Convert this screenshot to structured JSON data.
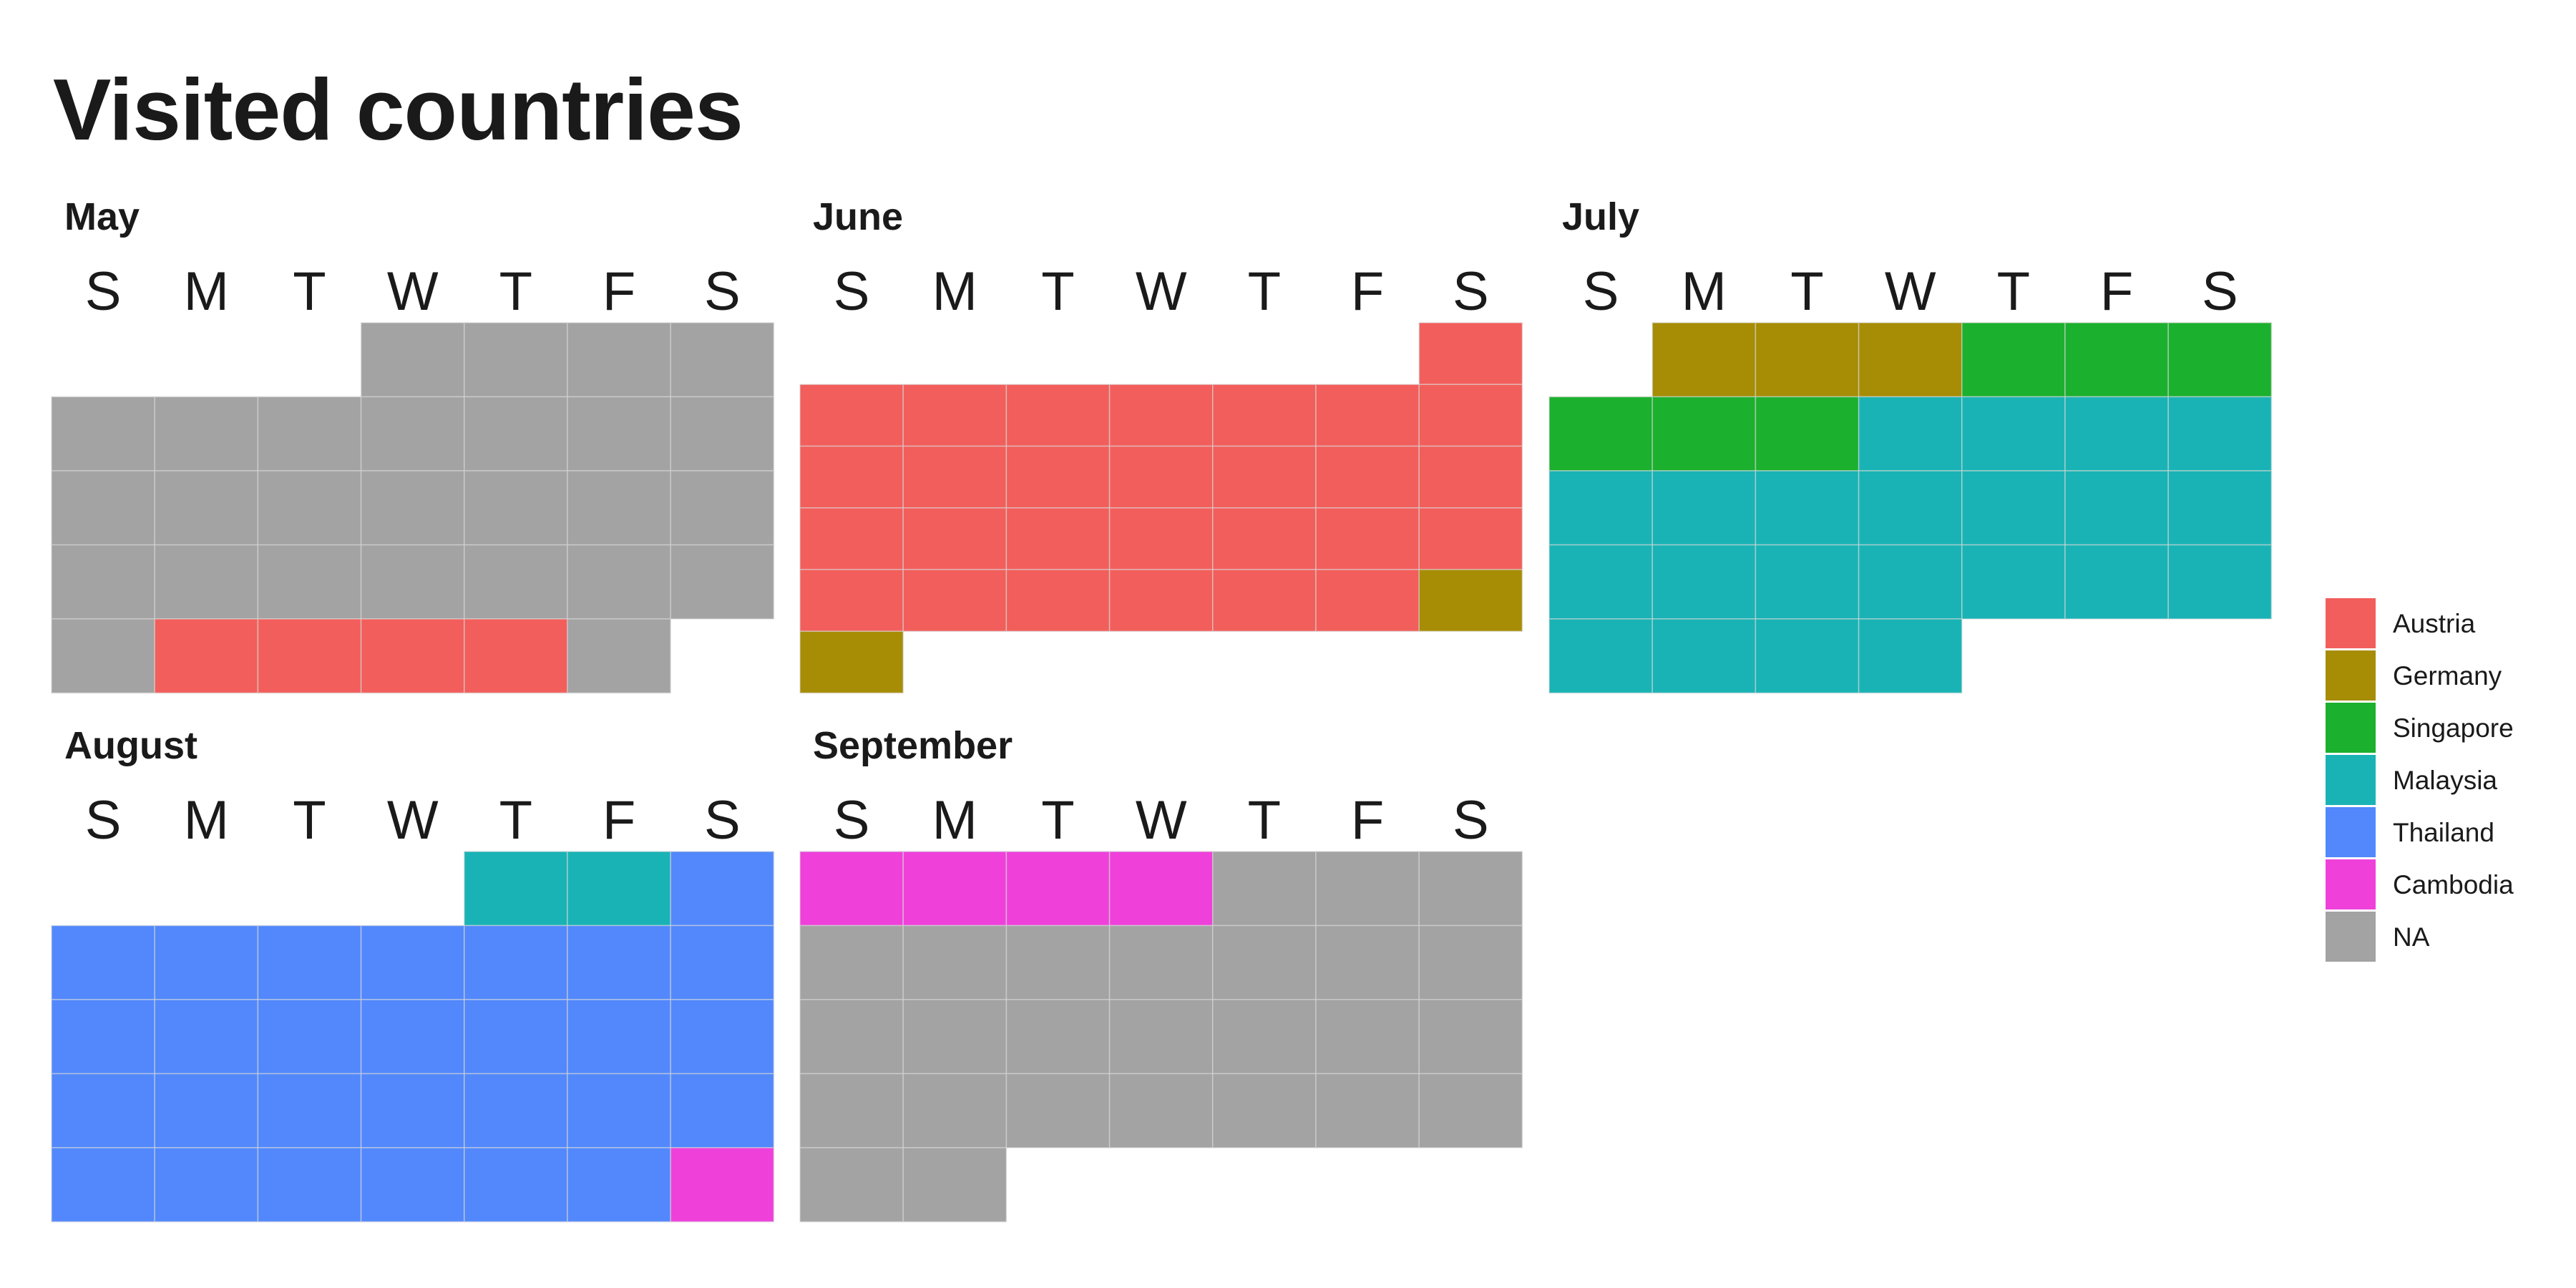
{
  "title": "Visited countries",
  "chart_data": {
    "type": "heatmap",
    "subtype": "calendar",
    "title": "Visited countries",
    "weekday_labels": [
      "S",
      "M",
      "T",
      "W",
      "T",
      "F",
      "S"
    ],
    "legend_title": "",
    "legend_placement": "right",
    "grid": false,
    "categories": [
      "Austria",
      "Germany",
      "Singapore",
      "Malaysia",
      "Thailand",
      "Cambodia",
      "NA"
    ],
    "colors": {
      "Austria": "#F25E5B",
      "Germany": "#A68D05",
      "Singapore": "#1BB02E",
      "Malaysia": "#19B3B5",
      "Thailand": "#5288FC",
      "Cambodia": "#EF41DA",
      "NA": "#A3A3A3"
    },
    "months": [
      {
        "name": "May",
        "first_weekday": 3,
        "days": 31,
        "segments": [
          {
            "from": 1,
            "to": 26,
            "country": "NA"
          },
          {
            "from": 27,
            "to": 30,
            "country": "Austria"
          },
          {
            "from": 31,
            "to": 31,
            "country": "NA"
          }
        ]
      },
      {
        "name": "June",
        "first_weekday": 6,
        "days": 30,
        "segments": [
          {
            "from": 1,
            "to": 28,
            "country": "Austria"
          },
          {
            "from": 29,
            "to": 30,
            "country": "Germany"
          }
        ]
      },
      {
        "name": "July",
        "first_weekday": 1,
        "days": 31,
        "segments": [
          {
            "from": 1,
            "to": 3,
            "country": "Germany"
          },
          {
            "from": 4,
            "to": 9,
            "country": "Singapore"
          },
          {
            "from": 10,
            "to": 31,
            "country": "Malaysia"
          }
        ]
      },
      {
        "name": "August",
        "first_weekday": 4,
        "days": 31,
        "segments": [
          {
            "from": 1,
            "to": 2,
            "country": "Malaysia"
          },
          {
            "from": 3,
            "to": 30,
            "country": "Thailand"
          },
          {
            "from": 31,
            "to": 31,
            "country": "Cambodia"
          }
        ]
      },
      {
        "name": "September",
        "first_weekday": 0,
        "days": 30,
        "segments": [
          {
            "from": 1,
            "to": 4,
            "country": "Cambodia"
          },
          {
            "from": 5,
            "to": 30,
            "country": "NA"
          }
        ]
      }
    ]
  }
}
